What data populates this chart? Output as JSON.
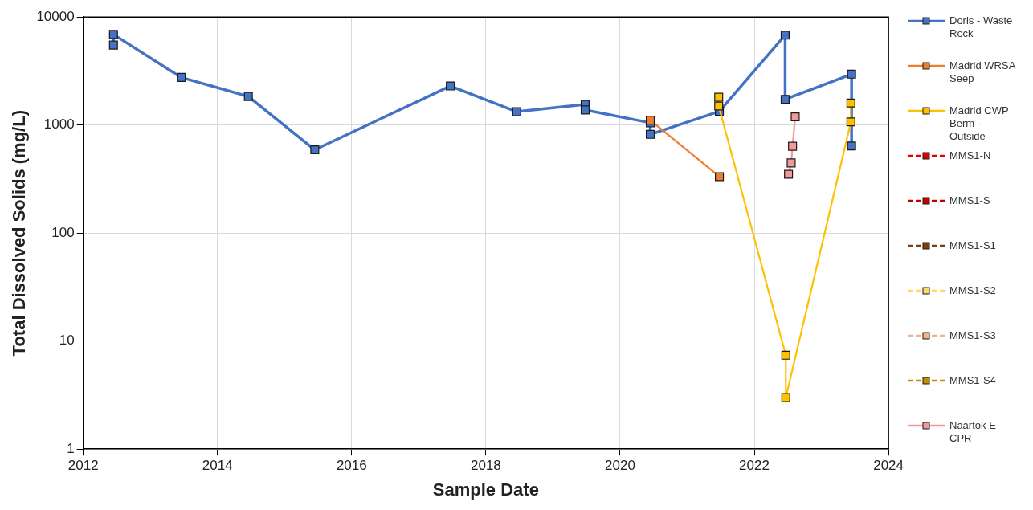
{
  "chart_data": {
    "type": "line",
    "xlabel": "Sample Date",
    "ylabel": "Total Dissolved Solids (mg/L)",
    "log": "y",
    "xlim": [
      2012,
      2024
    ],
    "xticks": [
      2012,
      2014,
      2016,
      2018,
      2020,
      2022,
      2024
    ],
    "ylim": [
      1,
      10000
    ],
    "yticks": [
      1,
      10,
      100,
      1000,
      10000
    ],
    "grid": true,
    "legend": "right",
    "marker": "square",
    "line_style": "solid",
    "series": [
      {
        "name": "Doris - Waste Rock",
        "color": "#4472c4",
        "x": [
          2012.45,
          2012.45,
          2013.46,
          2014.46,
          2015.45,
          2017.47,
          2018.46,
          2019.48,
          2019.48,
          2020.45,
          2020.45,
          2021.48,
          2022.46,
          2022.46,
          2023.45,
          2023.45
        ],
        "values": [
          5500,
          6900,
          2760,
          1840,
          590,
          2300,
          1330,
          1550,
          1380,
          1050,
          820,
          1340,
          6800,
          1730,
          2960,
          640
        ]
      },
      {
        "name": "Madrid WRSA Seep",
        "color": "#ed7d31",
        "x": [
          2020.45,
          2021.48
        ],
        "values": [
          1110,
          333
        ]
      },
      {
        "name": "Madrid CWP Berm - Outside",
        "color": "#ffc000",
        "x": [
          2021.47,
          2021.47,
          2022.47,
          2022.47,
          2023.44,
          2023.44
        ],
        "values": [
          1810,
          1500,
          7.4,
          3,
          1070,
          1600
        ]
      },
      {
        "name": "MMS1-N",
        "color": "#e00000",
        "line_style": "dashed"
      },
      {
        "name": "MMS1-S",
        "color": "#c00000",
        "line_style": "dashed"
      },
      {
        "name": "MMS1-S1",
        "color": "#843c0c",
        "line_style": "dashed"
      },
      {
        "name": "MMS1-S2",
        "color": "#ffd966",
        "line_style": "dashed"
      },
      {
        "name": "MMS1-S3",
        "color": "#f4b183",
        "line_style": "dashed"
      },
      {
        "name": "MMS1-S4",
        "color": "#bf9000",
        "line_style": "dashed"
      },
      {
        "name": "Naartok E CPR",
        "color": "#f4999a",
        "x": [
          2022.51,
          2022.55,
          2022.57,
          2022.61
        ],
        "values": [
          350,
          446,
          636,
          1190
        ]
      }
    ]
  }
}
